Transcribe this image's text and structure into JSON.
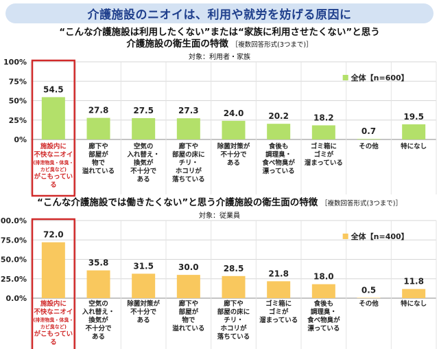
{
  "banner": {
    "title": "介護施設のニオイは、利用や就労を妨げる原因に"
  },
  "chart_data": [
    {
      "type": "bar",
      "title_line1": "“こんな介護施設は利用したくない”または“家族に利用させたくない”と思う",
      "title_line2": "介護施設の衛生面の特徴",
      "title_note": "［複数回答形式(3つまで)］",
      "subject": "対象：利用者・家族",
      "legend": "全体【n=600】",
      "color": "#b3e06a",
      "y_ticks": [
        "100%",
        "75%",
        "50%",
        "25%",
        "0%"
      ],
      "ylim": [
        0,
        100
      ],
      "categories": [
        {
          "lines": [
            "施設内に",
            "不快なニオイ"
          ],
          "small": "(排泄物臭・体臭・カビ臭など)",
          "tail": "がこもっている",
          "highlight": true
        },
        {
          "lines": [
            "廊下や",
            "部屋が",
            "物で",
            "溢れている"
          ]
        },
        {
          "lines": [
            "空気の",
            "入れ替え・",
            "換気が",
            "不十分で",
            "ある"
          ]
        },
        {
          "lines": [
            "廊下や",
            "部屋の床に",
            "チリ・",
            "ホコリが",
            "落ちている"
          ]
        },
        {
          "lines": [
            "除菌対策が",
            "不十分で",
            "ある"
          ]
        },
        {
          "lines": [
            "食後も",
            "調理臭・",
            "食べ物臭が",
            "漂っている"
          ]
        },
        {
          "lines": [
            "ゴミ箱に",
            "ゴミが",
            "溜まっている"
          ]
        },
        {
          "lines": [
            "その他"
          ]
        },
        {
          "lines": [
            "特になし"
          ]
        }
      ],
      "values": [
        54.5,
        27.8,
        27.5,
        27.3,
        24.0,
        20.2,
        18.2,
        0.7,
        19.5
      ],
      "value_labels": [
        "54.5",
        "27.8",
        "27.5",
        "27.3",
        "24.0",
        "20.2",
        "18.2",
        "0.7",
        "19.5"
      ]
    },
    {
      "type": "bar",
      "title_line1": "“こんな介護施設では働きたくない”と思う介護施設の衛生面の特徴",
      "title_line2": "",
      "title_note": "［複数回答形式(3つまで)］",
      "subject": "対象：従業員",
      "legend": "全体【n=400】",
      "color": "#f9c85e",
      "y_ticks": [
        "100.0%",
        "75.0%",
        "50.0%",
        "25.0%",
        "0.0%"
      ],
      "ylim": [
        0,
        100
      ],
      "categories": [
        {
          "lines": [
            "施設内に",
            "不快なニオイ"
          ],
          "small": "(排泄物臭・体臭・カビ臭など)",
          "tail": "がこもっている",
          "highlight": true
        },
        {
          "lines": [
            "空気の",
            "入れ替え・",
            "換気が",
            "不十分で",
            "ある"
          ]
        },
        {
          "lines": [
            "除菌対策が",
            "不十分で",
            "ある"
          ]
        },
        {
          "lines": [
            "廊下や",
            "部屋が",
            "物で",
            "溢れている"
          ]
        },
        {
          "lines": [
            "廊下や",
            "部屋の床に",
            "チリ・",
            "ホコリが",
            "落ちている"
          ]
        },
        {
          "lines": [
            "ゴミ箱に",
            "ゴミが",
            "溜まっている"
          ]
        },
        {
          "lines": [
            "食後も",
            "調理臭・",
            "食べ物臭が",
            "漂っている"
          ]
        },
        {
          "lines": [
            "その他"
          ]
        },
        {
          "lines": [
            "特になし"
          ]
        }
      ],
      "values": [
        72.0,
        35.8,
        31.5,
        30.0,
        28.5,
        21.8,
        18.0,
        0.5,
        11.8
      ],
      "value_labels": [
        "72.0",
        "35.8",
        "31.5",
        "30.0",
        "28.5",
        "21.8",
        "18.0",
        "0.5",
        "11.8"
      ]
    }
  ]
}
